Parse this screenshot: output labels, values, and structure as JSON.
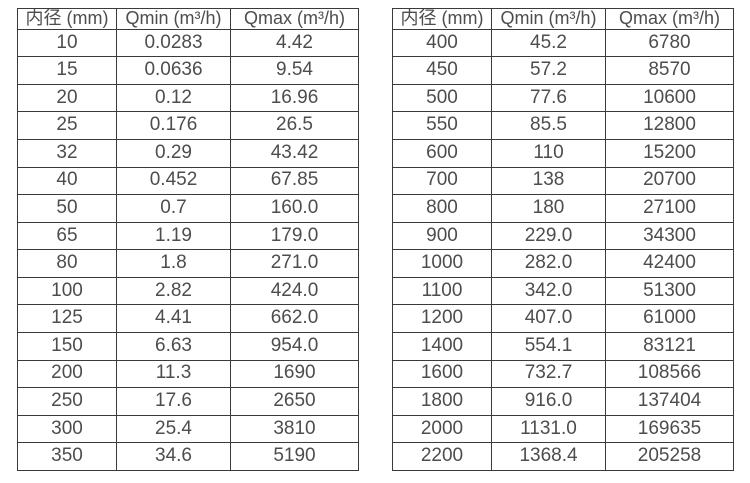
{
  "style": {
    "background": "#ffffff",
    "text_color": "#4d4d4d",
    "border_color": "#3a3a3a"
  },
  "tables": [
    {
      "name": "flow-spec-table-small-diameters",
      "headers": [
        "内径 (mm)",
        "Qmin (m³/h)",
        "Qmax (m³/h)"
      ],
      "rows": [
        [
          "10",
          "0.0283",
          "4.42"
        ],
        [
          "15",
          "0.0636",
          "9.54"
        ],
        [
          "20",
          "0.12",
          "16.96"
        ],
        [
          "25",
          "0.176",
          "26.5"
        ],
        [
          "32",
          "0.29",
          "43.42"
        ],
        [
          "40",
          "0.452",
          "67.85"
        ],
        [
          "50",
          "0.7",
          "160.0"
        ],
        [
          "65",
          "1.19",
          "179.0"
        ],
        [
          "80",
          "1.8",
          "271.0"
        ],
        [
          "100",
          "2.82",
          "424.0"
        ],
        [
          "125",
          "4.41",
          "662.0"
        ],
        [
          "150",
          "6.63",
          "954.0"
        ],
        [
          "200",
          "11.3",
          "1690"
        ],
        [
          "250",
          "17.6",
          "2650"
        ],
        [
          "300",
          "25.4",
          "3810"
        ],
        [
          "350",
          "34.6",
          "5190"
        ]
      ]
    },
    {
      "name": "flow-spec-table-large-diameters",
      "headers": [
        "内径 (mm)",
        "Qmin (m³/h)",
        "Qmax (m³/h)"
      ],
      "rows": [
        [
          "400",
          "45.2",
          "6780"
        ],
        [
          "450",
          "57.2",
          "8570"
        ],
        [
          "500",
          "77.6",
          "10600"
        ],
        [
          "550",
          "85.5",
          "12800"
        ],
        [
          "600",
          "110",
          "15200"
        ],
        [
          "700",
          "138",
          "20700"
        ],
        [
          "800",
          "180",
          "27100"
        ],
        [
          "900",
          "229.0",
          "34300"
        ],
        [
          "1000",
          "282.0",
          "42400"
        ],
        [
          "1100",
          "342.0",
          "51300"
        ],
        [
          "1200",
          "407.0",
          "61000"
        ],
        [
          "1400",
          "554.1",
          "83121"
        ],
        [
          "1600",
          "732.7",
          "108566"
        ],
        [
          "1800",
          "916.0",
          "137404"
        ],
        [
          "2000",
          "1131.0",
          "169635"
        ],
        [
          "2200",
          "1368.4",
          "205258"
        ]
      ]
    }
  ]
}
